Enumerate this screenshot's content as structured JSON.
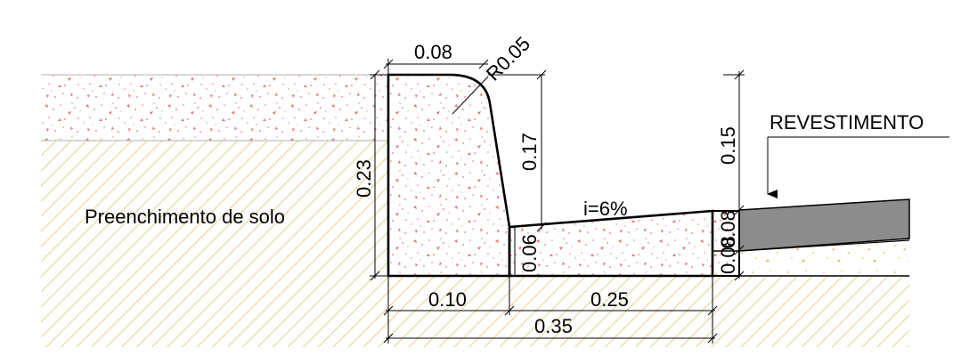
{
  "labels": {
    "fill_soil": "Preenchimento de solo",
    "pavement": "REVESTIMENTO",
    "slope": "i=6%",
    "radius": "R0.05"
  },
  "dimensions": {
    "top_width": "0.08",
    "total_height": "0.23",
    "curb_face_height": "0.17",
    "gutter_edge_height": "0.06",
    "curb_base_width": "0.10",
    "gutter_width": "0.25",
    "total_width": "0.35",
    "pavement_height": "0.15",
    "pavement_thickness": "0.08",
    "base_thickness": "0.08"
  },
  "colors": {
    "soil_hatch": "#d9bd5c",
    "concrete_speckle": "#e07a7a",
    "pavement_fill": "#8c8c8c",
    "line": "#000000"
  }
}
